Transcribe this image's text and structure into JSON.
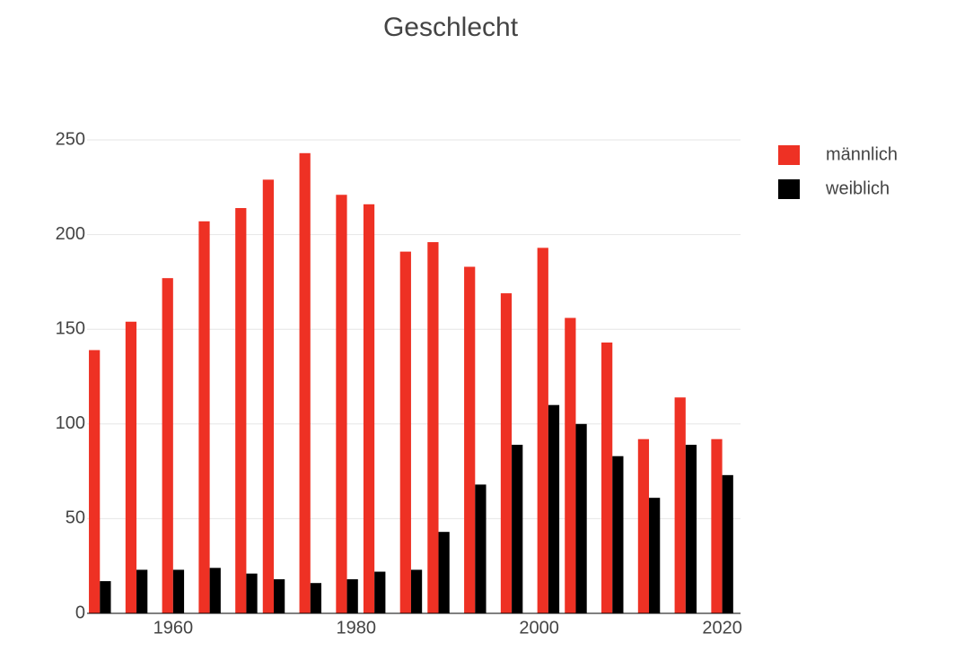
{
  "chart_data": {
    "type": "bar",
    "title": "Geschlecht",
    "x": [
      1952,
      1956,
      1960,
      1964,
      1968,
      1971,
      1975,
      1979,
      1982,
      1986,
      1989,
      1993,
      1997,
      2001,
      2004,
      2008,
      2012,
      2016,
      2020
    ],
    "series": [
      {
        "name": "männlich",
        "color": "#ee3124",
        "values": [
          139,
          154,
          177,
          207,
          214,
          229,
          243,
          221,
          216,
          191,
          196,
          183,
          169,
          193,
          156,
          143,
          92,
          114,
          92
        ]
      },
      {
        "name": "weiblich",
        "color": "#000000",
        "values": [
          17,
          23,
          23,
          24,
          21,
          18,
          16,
          18,
          22,
          23,
          43,
          68,
          89,
          110,
          100,
          83,
          61,
          89,
          73
        ]
      }
    ],
    "xlim": [
      1950.6,
      2022
    ],
    "xticks": [
      1960,
      1980,
      2000,
      2020
    ],
    "ylim": [
      0,
      250
    ],
    "yticks": [
      0,
      50,
      100,
      150,
      200,
      250
    ],
    "grid": true,
    "legend": "right"
  }
}
